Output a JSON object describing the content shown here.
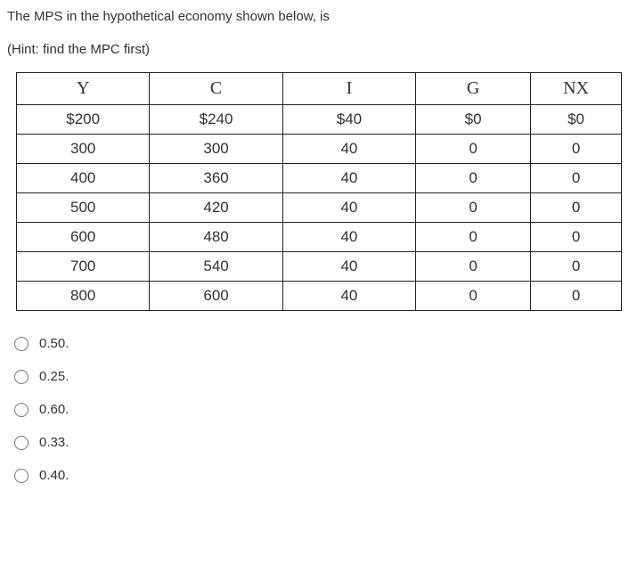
{
  "question": {
    "line1": "The MPS in the hypothetical economy shown below, is",
    "line2": "(Hint: find the MPC first)"
  },
  "table": {
    "columns": [
      "Y",
      "C",
      "I",
      "G",
      "NX"
    ],
    "col_widths_pct": [
      22,
      22,
      22,
      19,
      15
    ],
    "header_font": "Times New Roman",
    "header_fontsize": 20,
    "cell_fontsize": 17,
    "border_color": "#222222",
    "rows": [
      [
        "$200",
        "$240",
        "$40",
        "$0",
        "$0"
      ],
      [
        "300",
        "300",
        "40",
        "0",
        "0"
      ],
      [
        "400",
        "360",
        "40",
        "0",
        "0"
      ],
      [
        "500",
        "420",
        "40",
        "0",
        "0"
      ],
      [
        "600",
        "480",
        "40",
        "0",
        "0"
      ],
      [
        "700",
        "540",
        "40",
        "0",
        "0"
      ],
      [
        "800",
        "600",
        "40",
        "0",
        "0"
      ]
    ]
  },
  "options": [
    {
      "label": "0.50."
    },
    {
      "label": "0.25."
    },
    {
      "label": "0.60."
    },
    {
      "label": "0.33."
    },
    {
      "label": "0.40."
    }
  ],
  "colors": {
    "text": "#333333",
    "background": "#ffffff"
  }
}
